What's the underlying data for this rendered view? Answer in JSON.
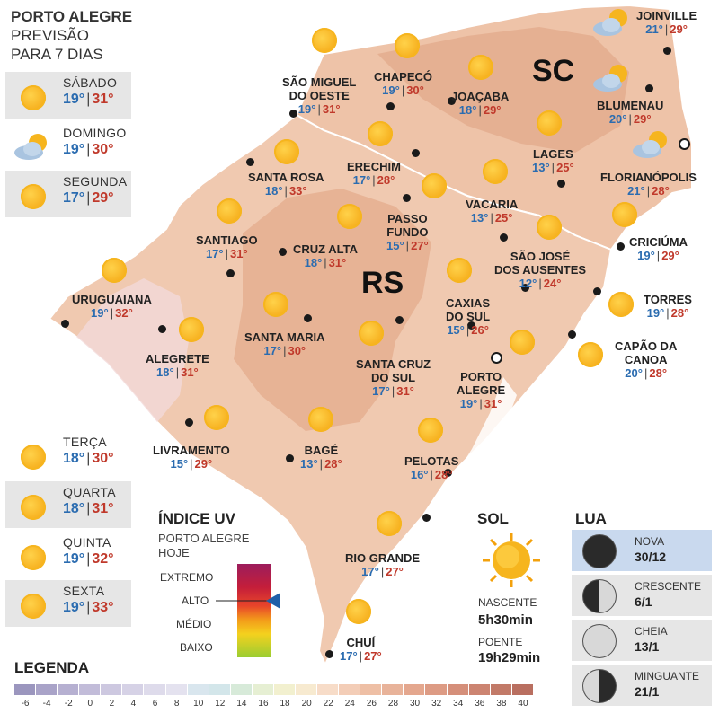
{
  "header": {
    "title": "PORTO ALEGRE",
    "subtitle1": "PREVISÃO",
    "subtitle2": "PARA 7 DIAS"
  },
  "week": [
    {
      "day": "SÁBADO",
      "min": "19°",
      "max": "31°",
      "icon": "sun-icon"
    },
    {
      "day": "DOMINGO",
      "min": "19°",
      "max": "30°",
      "icon": "cloud-sun-icon"
    },
    {
      "day": "SEGUNDA",
      "min": "17°",
      "max": "29°",
      "icon": "sun-icon"
    },
    {
      "day": "TERÇA",
      "min": "18°",
      "max": "30°",
      "icon": "sun-icon"
    },
    {
      "day": "QUARTA",
      "min": "18°",
      "max": "31°",
      "icon": "sun-icon"
    },
    {
      "day": "QUINTA",
      "min": "19°",
      "max": "32°",
      "icon": "sun-icon"
    },
    {
      "day": "SEXTA",
      "min": "19°",
      "max": "33°",
      "icon": "sun-icon"
    }
  ],
  "states": {
    "sc": "SC",
    "rs": "RS"
  },
  "cities": [
    {
      "name": "JOINVILLE",
      "min": "21°",
      "max": "29°",
      "icon": "cloud-sun-icon"
    },
    {
      "name": "CHAPECÓ",
      "min": "19°",
      "max": "30°",
      "icon": "sun-icon"
    },
    {
      "name": "SÃO MIGUEL DO OESTE",
      "name1": "SÃO MIGUEL",
      "name2": "DO OESTE",
      "min": "19°",
      "max": "31°",
      "icon": "sun-icon"
    },
    {
      "name": "JOAÇABA",
      "min": "18°",
      "max": "29°",
      "icon": "sun-icon"
    },
    {
      "name": "BLUMENAU",
      "min": "20°",
      "max": "29°",
      "icon": "cloud-sun-icon"
    },
    {
      "name": "LAGES",
      "min": "13°",
      "max": "25°",
      "icon": "sun-icon"
    },
    {
      "name": "FLORIANÓPOLIS",
      "min": "21°",
      "max": "28°",
      "icon": "cloud-sun-icon"
    },
    {
      "name": "ERECHIM",
      "min": "17°",
      "max": "28°",
      "icon": "sun-icon"
    },
    {
      "name": "SANTA ROSA",
      "min": "18°",
      "max": "33°",
      "icon": "sun-icon"
    },
    {
      "name": "VACARIA",
      "min": "13°",
      "max": "25°",
      "icon": "sun-icon"
    },
    {
      "name": "PASSO FUNDO",
      "name1": "PASSO",
      "name2": "FUNDO",
      "min": "15°",
      "max": "27°",
      "icon": "sun-icon"
    },
    {
      "name": "SANTIAGO",
      "min": "17°",
      "max": "31°",
      "icon": "sun-icon"
    },
    {
      "name": "CRUZ ALTA",
      "min": "18°",
      "max": "31°",
      "icon": "sun-icon"
    },
    {
      "name": "CRICIÚMA",
      "min": "19°",
      "max": "29°",
      "icon": "sun-icon"
    },
    {
      "name": "SÃO JOSÉ DOS AUSENTES",
      "name1": "SÃO JOSÉ",
      "name2": "DOS AUSENTES",
      "min": "12°",
      "max": "24°",
      "icon": "sun-icon"
    },
    {
      "name": "URUGUAIANA",
      "min": "19°",
      "max": "32°",
      "icon": "sun-icon"
    },
    {
      "name": "TORRES",
      "min": "19°",
      "max": "28°",
      "icon": "sun-icon"
    },
    {
      "name": "CAXIAS DO SUL",
      "name1": "CAXIAS",
      "name2": "DO SUL",
      "min": "15°",
      "max": "26°",
      "icon": "sun-icon"
    },
    {
      "name": "SANTA MARIA",
      "min": "17°",
      "max": "30°",
      "icon": "sun-icon"
    },
    {
      "name": "ALEGRETE",
      "min": "18°",
      "max": "31°",
      "icon": "sun-icon"
    },
    {
      "name": "CAPÃO DA CANOA",
      "name1": "CAPÃO DA",
      "name2": "CANOA",
      "min": "20°",
      "max": "28°",
      "icon": "sun-icon"
    },
    {
      "name": "SANTA CRUZ DO SUL",
      "name1": "SANTA CRUZ",
      "name2": "DO SUL",
      "min": "17°",
      "max": "31°",
      "icon": "sun-icon"
    },
    {
      "name": "PORTO ALEGRE",
      "name1": "PORTO",
      "name2": "ALEGRE",
      "min": "19°",
      "max": "31°",
      "icon": "sun-icon"
    },
    {
      "name": "LIVRAMENTO",
      "min": "15°",
      "max": "29°",
      "icon": "sun-icon"
    },
    {
      "name": "BAGÉ",
      "min": "13°",
      "max": "28°",
      "icon": "sun-icon"
    },
    {
      "name": "PELOTAS",
      "min": "16°",
      "max": "28°",
      "icon": "sun-icon"
    },
    {
      "name": "RIO GRANDE",
      "min": "17°",
      "max": "27°",
      "icon": "sun-icon"
    },
    {
      "name": "CHUÍ",
      "min": "17°",
      "max": "27°",
      "icon": "sun-icon"
    }
  ],
  "uv": {
    "title": "ÍNDICE UV",
    "sub1": "PORTO ALEGRE",
    "sub2": "HOJE",
    "levels": [
      "EXTREMO",
      "ALTO",
      "MÉDIO",
      "BAIXO"
    ],
    "current": "ALTO"
  },
  "sol": {
    "title": "SOL",
    "rise_label": "NASCENTE",
    "rise": "5h30min",
    "set_label": "POENTE",
    "set": "19h29min"
  },
  "lua": {
    "title": "LUA",
    "phases": [
      {
        "name": "NOVA",
        "date": "30/12",
        "icon": "new-moon-icon",
        "lit": 0.0
      },
      {
        "name": "CRESCENTE",
        "date": "6/1",
        "icon": "first-quarter-moon-icon",
        "lit": 0.5
      },
      {
        "name": "CHEIA",
        "date": "13/1",
        "icon": "full-moon-icon",
        "lit": 1.0
      },
      {
        "name": "MINGUANTE",
        "date": "21/1",
        "icon": "last-quarter-moon-icon",
        "lit": 0.5
      }
    ]
  },
  "legend": {
    "title": "LEGENDA",
    "ticks": [
      "-6",
      "-4",
      "-2",
      "0",
      "2",
      "4",
      "6",
      "8",
      "10",
      "12",
      "14",
      "16",
      "18",
      "20",
      "22",
      "24",
      "26",
      "28",
      "30",
      "32",
      "34",
      "36",
      "38",
      "40"
    ],
    "colors": [
      "#9b96be",
      "#a9a3c8",
      "#b6b0d1",
      "#c2bcd9",
      "#cdc8e0",
      "#d6d2e6",
      "#dedbeb",
      "#e4e2ef",
      "#d9e6ee",
      "#d3e6ea",
      "#d7ead9",
      "#e6efd3",
      "#f2f0cf",
      "#f7ead0",
      "#f7dcc8",
      "#f3cdb7",
      "#eebf a5",
      "#e8b39a",
      "#e4a78e",
      "#dd9b84",
      "#d58f7a",
      "#cc8471",
      "#c27a68",
      "#b96f60"
    ]
  }
}
